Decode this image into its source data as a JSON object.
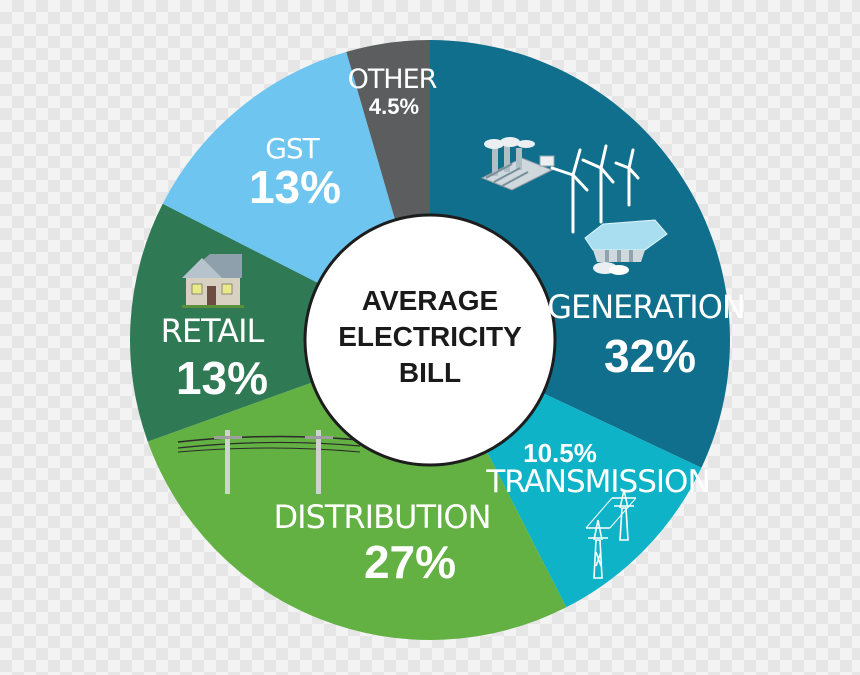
{
  "chart_data": {
    "type": "pie",
    "title": "AVERAGE ELECTRICITY BILL",
    "title_lines": [
      "AVERAGE",
      "ELECTRICITY",
      "BILL"
    ],
    "slices": [
      {
        "name": "GENERATION",
        "display": "32%",
        "value": 32,
        "color": "#0f6f8c",
        "icon": "generation-plants-icon"
      },
      {
        "name": "TRANSMISSION",
        "display": "10.5%",
        "value": 10.5,
        "color": "#0fb3c7",
        "icon": "transmission-tower-icon"
      },
      {
        "name": "DISTRIBUTION",
        "display": "27%",
        "value": 27,
        "color": "#63b143",
        "icon": "power-pole-icon"
      },
      {
        "name": "RETAIL",
        "display": "13%",
        "value": 13,
        "color": "#2f7a55",
        "icon": "house-icon"
      },
      {
        "name": "GST",
        "display": "13%",
        "value": 13,
        "color": "#6ec5ef",
        "icon": ""
      },
      {
        "name": "OTHER",
        "display": "4.5%",
        "value": 4.5,
        "color": "#5b5d5e",
        "icon": ""
      }
    ]
  }
}
